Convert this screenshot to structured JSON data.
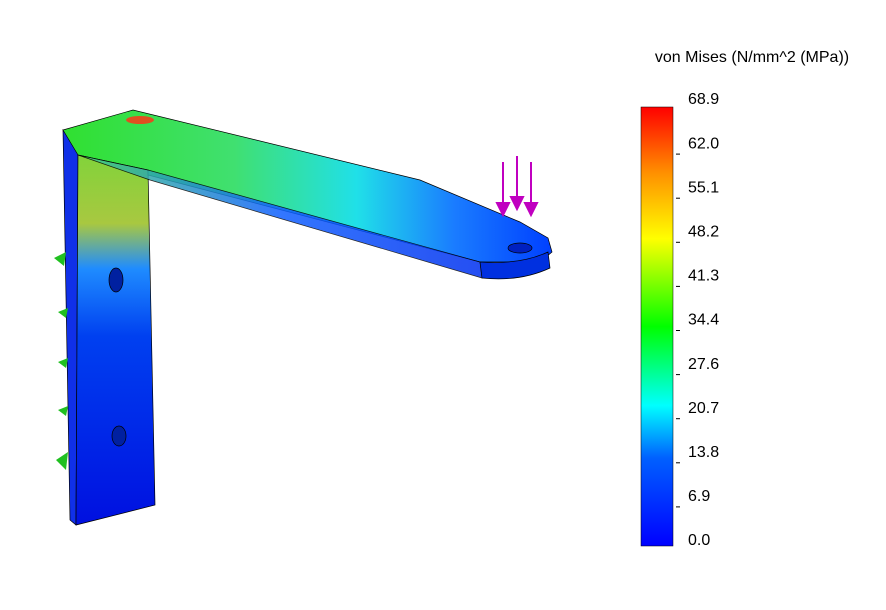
{
  "legend": {
    "title": "von Mises (N/mm^2 (MPa))",
    "ticks": [
      "68.9",
      "62.0",
      "55.1",
      "48.2",
      "41.3",
      "34.4",
      "27.6",
      "20.7",
      "13.8",
      "6.9",
      "0.0"
    ]
  }
}
